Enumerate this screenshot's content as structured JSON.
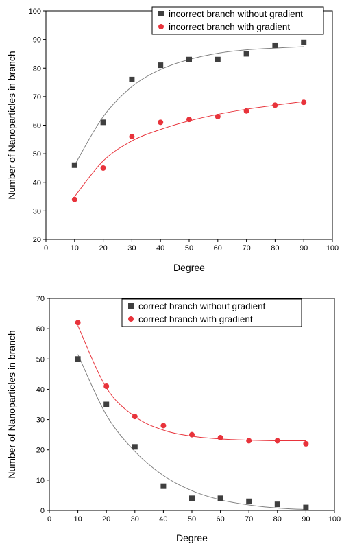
{
  "chart_data": [
    {
      "type": "scatter",
      "xlabel": "Degree",
      "ylabel": "Number of Nanoparticles in branch",
      "xlim": [
        0,
        100
      ],
      "ylim": [
        20,
        100
      ],
      "xticks": [
        0,
        10,
        20,
        30,
        40,
        50,
        60,
        70,
        80,
        90,
        100
      ],
      "yticks": [
        20,
        30,
        40,
        50,
        60,
        70,
        80,
        90,
        100
      ],
      "grid": false,
      "legend_position": "top-right",
      "series": [
        {
          "name": "incorrect branch without gradient",
          "marker": "square",
          "color": "#3f3f3f",
          "fit_color": "#808080",
          "x": [
            10,
            20,
            30,
            40,
            50,
            60,
            70,
            80,
            90
          ],
          "y": [
            46,
            61,
            76,
            81,
            83,
            83,
            85,
            88,
            89
          ],
          "fit": [
            46,
            63,
            73.5,
            79.5,
            83,
            85.2,
            86.4,
            87,
            87.5
          ]
        },
        {
          "name": "incorrect branch with gradient",
          "marker": "circle",
          "color": "#e8333b",
          "fit_color": "#e8333b",
          "x": [
            10,
            20,
            30,
            40,
            50,
            60,
            70,
            80,
            90
          ],
          "y": [
            34,
            45,
            56,
            61,
            62,
            63,
            65,
            67,
            68
          ],
          "fit": [
            35,
            47.5,
            54.5,
            58.5,
            61.5,
            63.8,
            65.6,
            67,
            68.3
          ]
        }
      ]
    },
    {
      "type": "scatter",
      "xlabel": "Degree",
      "ylabel": "Number of Nanoparticles in branch",
      "xlim": [
        0,
        100
      ],
      "ylim": [
        0,
        70
      ],
      "xticks": [
        0,
        10,
        20,
        30,
        40,
        50,
        60,
        70,
        80,
        90,
        100
      ],
      "yticks": [
        0,
        10,
        20,
        30,
        40,
        50,
        60,
        70
      ],
      "grid": false,
      "legend_position": "top-right",
      "series": [
        {
          "name": "correct branch without gradient",
          "marker": "square",
          "color": "#3f3f3f",
          "fit_color": "#808080",
          "x": [
            10,
            20,
            30,
            40,
            50,
            60,
            70,
            80,
            90
          ],
          "y": [
            50,
            35,
            21,
            8,
            4,
            4,
            3,
            2,
            1
          ],
          "fit": [
            51.5,
            31.5,
            19.5,
            11.5,
            6.5,
            3.5,
            1.8,
            0.8,
            0.3
          ]
        },
        {
          "name": "correct branch with gradient",
          "marker": "circle",
          "color": "#e8333b",
          "fit_color": "#e8333b",
          "x": [
            10,
            20,
            30,
            40,
            50,
            60,
            70,
            80,
            90
          ],
          "y": [
            62,
            41,
            31,
            28,
            25,
            24,
            23,
            23,
            22
          ],
          "fit": [
            61,
            40.5,
            31,
            26.5,
            24.5,
            23.6,
            23.2,
            23,
            23
          ]
        }
      ]
    }
  ]
}
